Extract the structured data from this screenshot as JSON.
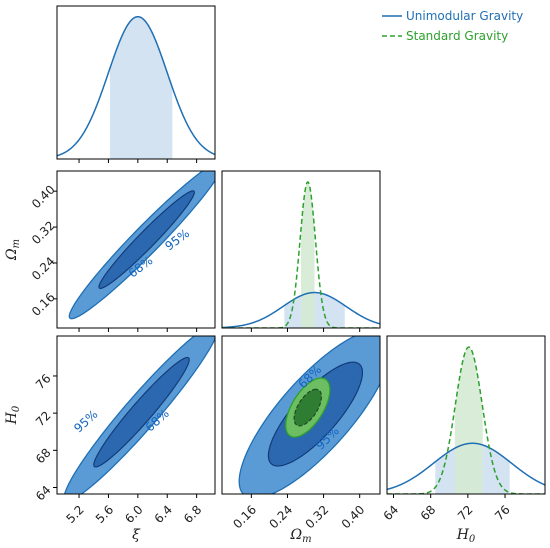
{
  "legend": {
    "entries": [
      {
        "label": "Unimodular Gravity",
        "color": "#1f6fb4",
        "style": "solid"
      },
      {
        "label": "Standard Gravity",
        "color": "#2ca02c",
        "style": "dashed"
      }
    ]
  },
  "colors": {
    "blue_line": "#1f6fb4",
    "blue_fill_outer": "#5b9bd5",
    "blue_fill_inner": "#2c68b0",
    "blue_band": "#d2e1f1",
    "green_line": "#2ca02c",
    "green_fill_outer": "#6dbd63",
    "green_fill_inner": "#2e7d32",
    "green_band": "#d5ead3"
  },
  "chart_data": {
    "type": "corner",
    "parameters": [
      {
        "symbol": "ξ",
        "label": "ξ",
        "range": [
          4.9,
          7.05
        ],
        "ticks": [
          "5.2",
          "5.6",
          "6.0",
          "6.4",
          "6.8"
        ]
      },
      {
        "symbol": "Ωm",
        "label": "Ωm",
        "range": [
          0.095,
          0.445
        ],
        "ticks": [
          "0.16",
          "0.24",
          "0.32",
          "0.40"
        ]
      },
      {
        "symbol": "H0",
        "label": "H0",
        "range": [
          63.3,
          80.3
        ],
        "ticks": [
          "64",
          "68",
          "72",
          "76"
        ]
      }
    ],
    "marginals": [
      {
        "param": "ξ",
        "series": [
          {
            "name": "Unimodular Gravity",
            "mean": 6.0,
            "sigma": 0.4,
            "band": [
              5.62,
              6.47
            ]
          }
        ]
      },
      {
        "param": "Ωm",
        "series": [
          {
            "name": "Unimodular Gravity",
            "mean": 0.3,
            "sigma": 0.07,
            "band": [
              0.233,
              0.367
            ]
          },
          {
            "name": "Standard Gravity",
            "mean": 0.285,
            "sigma": 0.017,
            "band": [
              0.27,
              0.3
            ]
          }
        ]
      },
      {
        "param": "H0",
        "series": [
          {
            "name": "Unimodular Gravity",
            "mean": 72.5,
            "sigma": 4.2,
            "band": [
              68.5,
              76.5
            ]
          },
          {
            "name": "Standard Gravity",
            "mean": 72.1,
            "sigma": 1.45,
            "band": [
              70.6,
              73.6
            ]
          }
        ]
      }
    ],
    "contours": [
      {
        "x": "ξ",
        "y": "Ωm",
        "series": [
          {
            "name": "Unimodular Gravity",
            "mean": [
              6.12,
              0.292
            ],
            "sigma": [
              0.43,
              0.072
            ],
            "rho": 0.97
          }
        ],
        "labels": [
          "68%",
          "95%"
        ]
      },
      {
        "x": "ξ",
        "y": "H0",
        "series": [
          {
            "name": "Unimodular Gravity",
            "mean": [
              6.05,
              72.1
            ],
            "sigma": [
              0.43,
              3.9
            ],
            "rho": 0.96
          }
        ],
        "labels": [
          "95%",
          "68%"
        ]
      },
      {
        "x": "Ωm",
        "y": "H0",
        "series": [
          {
            "name": "Unimodular Gravity",
            "mean": [
              0.302,
              71.9
            ],
            "sigma": [
              0.069,
              3.7
            ],
            "rho": 0.8
          },
          {
            "name": "Standard Gravity",
            "mean": [
              0.285,
              72.6
            ],
            "sigma": [
              0.02,
              1.3
            ],
            "rho": 0.6
          }
        ],
        "labels": [
          "68%",
          "95%"
        ]
      }
    ],
    "confidence_levels": [
      "68%",
      "95%"
    ]
  }
}
